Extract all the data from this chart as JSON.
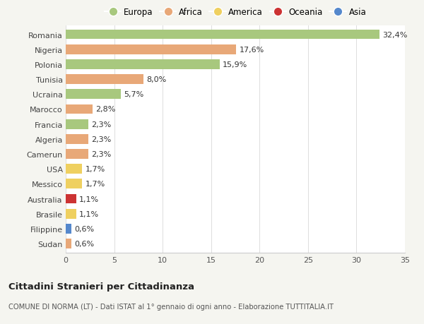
{
  "countries": [
    "Romania",
    "Nigeria",
    "Polonia",
    "Tunisia",
    "Ucraina",
    "Marocco",
    "Francia",
    "Algeria",
    "Camerun",
    "USA",
    "Messico",
    "Australia",
    "Brasile",
    "Filippine",
    "Sudan"
  ],
  "values": [
    32.4,
    17.6,
    15.9,
    8.0,
    5.7,
    2.8,
    2.3,
    2.3,
    2.3,
    1.7,
    1.7,
    1.1,
    1.1,
    0.6,
    0.6
  ],
  "labels": [
    "32,4%",
    "17,6%",
    "15,9%",
    "8,0%",
    "5,7%",
    "2,8%",
    "2,3%",
    "2,3%",
    "2,3%",
    "1,7%",
    "1,7%",
    "1,1%",
    "1,1%",
    "0,6%",
    "0,6%"
  ],
  "continents": [
    "Europa",
    "Africa",
    "Europa",
    "Africa",
    "Europa",
    "Africa",
    "Europa",
    "Africa",
    "Africa",
    "America",
    "America",
    "Oceania",
    "America",
    "Asia",
    "Africa"
  ],
  "continent_colors": {
    "Europa": "#a8c87e",
    "Africa": "#e8a878",
    "America": "#efd060",
    "Oceania": "#cc3333",
    "Asia": "#5588cc"
  },
  "legend_order": [
    "Europa",
    "Africa",
    "America",
    "Oceania",
    "Asia"
  ],
  "title": "Cittadini Stranieri per Cittadinanza",
  "subtitle": "COMUNE DI NORMA (LT) - Dati ISTAT al 1° gennaio di ogni anno - Elaborazione TUTTITALIA.IT",
  "xlim": [
    0,
    35
  ],
  "xticks": [
    0,
    5,
    10,
    15,
    20,
    25,
    30,
    35
  ],
  "background_color": "#f5f5f0",
  "plot_bg_color": "#ffffff",
  "bar_height": 0.65,
  "label_fontsize": 8,
  "ytick_fontsize": 8,
  "xtick_fontsize": 8
}
